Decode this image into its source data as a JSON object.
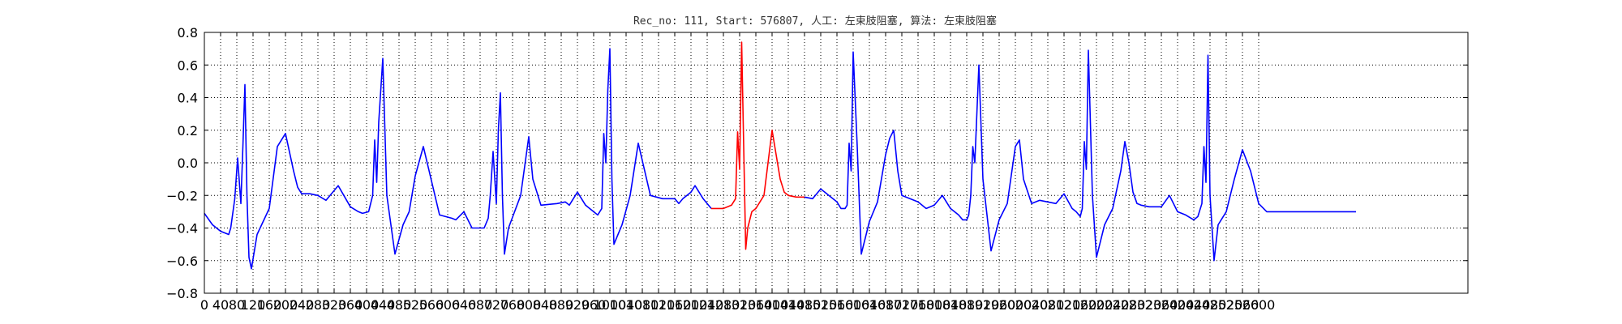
{
  "chart_data": {
    "type": "line",
    "title": "Rec_no: 111, Start: 576807, 人工: 左束肢阻塞, 算法: 左束肢阻塞",
    "xlabel": "",
    "ylabel": "",
    "xlim": [
      0,
      3120
    ],
    "ylim": [
      -0.8,
      0.8
    ],
    "grid": true,
    "x_step": 40,
    "y_ticks": [
      "0.8",
      "0.6",
      "0.4",
      "0.2",
      "0.0",
      "−0.2",
      "−0.4",
      "−0.6",
      "−0.8"
    ],
    "y_tick_values": [
      0.8,
      0.6,
      0.4,
      0.2,
      0.0,
      -0.2,
      -0.4,
      -0.6,
      -0.8
    ],
    "x_ticks": [
      "0",
      "40",
      "80",
      "120",
      "160",
      "200",
      "240",
      "280",
      "320",
      "360",
      "400",
      "440",
      "480",
      "520",
      "560",
      "600",
      "640",
      "680",
      "720",
      "760",
      "800",
      "840",
      "880",
      "920",
      "960",
      "1000",
      "1040",
      "1080",
      "1120",
      "1160",
      "1200",
      "1240",
      "1280",
      "1320",
      "1360",
      "1400",
      "1440",
      "1480",
      "1520",
      "1560",
      "1600",
      "1640",
      "1680",
      "1720",
      "1760",
      "1800",
      "1840",
      "1880",
      "1920",
      "1960",
      "2000",
      "2040",
      "2080",
      "2120",
      "2160",
      "2200",
      "2240",
      "2280",
      "2320",
      "2360",
      "2400",
      "2440",
      "2480",
      "2520",
      "2560",
      "2600"
    ],
    "x_tick_values": [
      0,
      40,
      80,
      120,
      160,
      200,
      240,
      280,
      320,
      360,
      400,
      440,
      480,
      520,
      560,
      600,
      640,
      680,
      720,
      760,
      800,
      840,
      880,
      920,
      960,
      1000,
      1040,
      1080,
      1120,
      1160,
      1200,
      1240,
      1280,
      1320,
      1360,
      1400,
      1440,
      1480,
      1520,
      1560,
      1600,
      1640,
      1680,
      1720,
      1760,
      1800,
      1840,
      1880,
      1920,
      1960,
      2000,
      2040,
      2080,
      2120,
      2160,
      2200,
      2240,
      2280,
      2320,
      2360,
      2400,
      2440,
      2480,
      2520,
      2560,
      2600
    ],
    "colors": {
      "normal": "#0000ff",
      "highlight": "#ff0000"
    },
    "series": [
      {
        "color": "#0000ff",
        "x": [
          0,
          20,
          40,
          60,
          65,
          75,
          82,
          90,
          95,
          100,
          105,
          110,
          116,
          130,
          160,
          180,
          200,
          220,
          230,
          240,
          260,
          280,
          300,
          330,
          360,
          380,
          390,
          405,
          415,
          420,
          425,
          430,
          440,
          450,
          470,
          490,
          505,
          520,
          540,
          580,
          610,
          620,
          640,
          660,
          690,
          700,
          705,
          712,
          720,
          725,
          730,
          735,
          740,
          750,
          780,
          800,
          810,
          830,
          870,
          890,
          900,
          920,
          940,
          960,
          970,
          980,
          985,
          990,
          995,
          1000,
          1005,
          1010,
          1030,
          1050,
          1070,
          1100,
          1130,
          1160,
          1170,
          1180,
          1200,
          1210,
          1230,
          1250
        ],
        "y": [
          -0.31,
          -0.38,
          -0.42,
          -0.44,
          -0.4,
          -0.22,
          0.03,
          -0.25,
          0.1,
          0.48,
          -0.2,
          -0.58,
          -0.65,
          -0.44,
          -0.28,
          0.1,
          0.18,
          -0.05,
          -0.15,
          -0.19,
          -0.19,
          -0.2,
          -0.23,
          -0.14,
          -0.27,
          -0.3,
          -0.31,
          -0.3,
          -0.2,
          0.14,
          -0.12,
          0.25,
          0.64,
          -0.2,
          -0.56,
          -0.38,
          -0.3,
          -0.08,
          0.1,
          -0.32,
          -0.34,
          -0.35,
          -0.3,
          -0.4,
          -0.4,
          -0.34,
          -0.2,
          0.07,
          -0.25,
          0.2,
          0.43,
          -0.2,
          -0.56,
          -0.4,
          -0.2,
          0.16,
          -0.1,
          -0.26,
          -0.25,
          -0.24,
          -0.26,
          -0.18,
          -0.26,
          -0.3,
          -0.32,
          -0.28,
          0.18,
          0.0,
          0.45,
          0.7,
          -0.1,
          -0.5,
          -0.38,
          -0.2,
          0.12,
          -0.2,
          -0.22,
          -0.22,
          -0.25,
          -0.22,
          -0.18,
          -0.14,
          -0.22,
          -0.28
        ]
      },
      {
        "color": "#ff0000",
        "x": [
          1250,
          1280,
          1300,
          1310,
          1315,
          1320,
          1325,
          1330,
          1335,
          1340,
          1350,
          1360,
          1380,
          1400,
          1420,
          1430,
          1440,
          1460,
          1480
        ],
        "y": [
          -0.28,
          -0.28,
          -0.26,
          -0.22,
          0.19,
          -0.04,
          0.74,
          0.1,
          -0.53,
          -0.4,
          -0.3,
          -0.28,
          -0.2,
          0.2,
          -0.1,
          -0.18,
          -0.2,
          -0.21,
          -0.21
        ]
      },
      {
        "color": "#0000ff",
        "x": [
          1480,
          1500,
          1520,
          1540,
          1560,
          1570,
          1580,
          1585,
          1590,
          1595,
          1600,
          1610,
          1620,
          1640,
          1660,
          1680,
          1690,
          1700,
          1710,
          1720,
          1740,
          1760,
          1780,
          1800,
          1820,
          1840,
          1860,
          1870,
          1880,
          1885,
          1890,
          1895,
          1900,
          1910,
          1920,
          1940,
          1960,
          1980,
          2000,
          2010,
          2020,
          2040,
          2060,
          2080,
          2100,
          2120,
          2140,
          2150,
          2160,
          2165,
          2170,
          2175,
          2180,
          2190,
          2200,
          2220,
          2240,
          2260,
          2270,
          2280,
          2290,
          2300,
          2310,
          2330,
          2360,
          2380,
          2400,
          2420,
          2440,
          2450,
          2460,
          2465,
          2470,
          2475,
          2480,
          2490,
          2500,
          2520,
          2540,
          2560,
          2580,
          2600,
          2620,
          2640,
          2660,
          2670,
          2680,
          2685,
          2690,
          2695,
          2700,
          2710,
          2720,
          2740,
          2760,
          2780,
          2800,
          2815,
          2820,
          2830,
          2840
        ],
        "y": [
          -0.21,
          -0.22,
          -0.16,
          -0.2,
          -0.24,
          -0.28,
          -0.28,
          -0.26,
          0.12,
          -0.05,
          0.68,
          0.1,
          -0.56,
          -0.36,
          -0.24,
          0.05,
          0.15,
          0.2,
          -0.05,
          -0.2,
          -0.22,
          -0.24,
          -0.28,
          -0.26,
          -0.2,
          -0.28,
          -0.32,
          -0.35,
          -0.35,
          -0.32,
          -0.2,
          0.1,
          0.0,
          0.6,
          -0.1,
          -0.54,
          -0.35,
          -0.25,
          0.1,
          0.14,
          -0.1,
          -0.25,
          -0.23,
          -0.24,
          -0.25,
          -0.19,
          -0.28,
          -0.3,
          -0.33,
          -0.28,
          0.13,
          -0.04,
          0.69,
          -0.2,
          -0.58,
          -0.38,
          -0.28,
          -0.05,
          0.13,
          0.0,
          -0.18,
          -0.25,
          -0.26,
          -0.27,
          -0.27,
          -0.2,
          -0.3,
          -0.32,
          -0.35,
          -0.33,
          -0.25,
          0.1,
          -0.12,
          0.66,
          -0.2,
          -0.6,
          -0.38,
          -0.3,
          -0.1,
          0.08,
          -0.05,
          -0.25,
          -0.3,
          -0.3,
          -0.3,
          -0.3,
          -0.3,
          -0.3,
          -0.3,
          -0.3,
          -0.3,
          -0.3,
          -0.3,
          -0.3,
          -0.3,
          -0.3,
          -0.3,
          -0.3,
          -0.3,
          -0.3,
          -0.3
        ]
      }
    ]
  }
}
